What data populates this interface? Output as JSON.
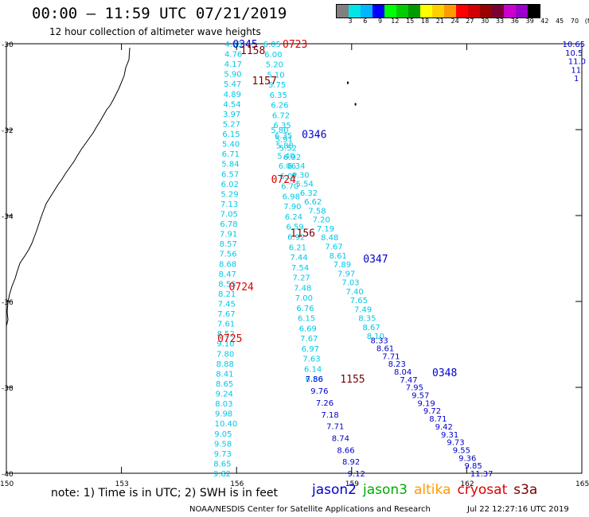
{
  "header": {
    "title": "00:00 – 11:59 UTC 07/21/2019",
    "subtitle": "12 hour collection of altimeter wave heights"
  },
  "colorbar": {
    "colors": [
      "#808080",
      "#00e5e5",
      "#00b4ff",
      "#0000ff",
      "#00ff00",
      "#00cc00",
      "#009900",
      "#ffff00",
      "#ffd000",
      "#ff9900",
      "#ff0000",
      "#d10000",
      "#990000",
      "#7a0033",
      "#cc00cc",
      "#9900cc",
      "#000000"
    ],
    "labels": [
      "3",
      "6",
      "9",
      "12",
      "15",
      "18",
      "21",
      "24",
      "27",
      "30",
      "33",
      "36",
      "39",
      "42",
      "45",
      "70",
      "(ft)"
    ]
  },
  "map": {
    "lat_range": [
      -40,
      -30
    ],
    "lon_range": [
      150,
      165
    ],
    "lat_ticks": [
      "-30",
      "-32",
      "-34",
      "-36",
      "-38",
      "-40"
    ],
    "lon_ticks": [
      "150",
      "153",
      "156",
      "159",
      "162",
      "165"
    ],
    "colors": {
      "cyan": "#00c8e8",
      "blue": "#0000cc",
      "red": "#dd0000",
      "maroon": "#7a0000"
    },
    "tracks": [
      {
        "color": "cyan",
        "lon_start": 155.9,
        "lat_start": -30.0,
        "lon_end": 155.6,
        "lat_end": -40.0,
        "values": [
          "4.83",
          "4.76",
          "4.17",
          "5.90",
          "5.47",
          "4.89",
          "4.54",
          "3.97",
          "5.27",
          "6.15",
          "5.40",
          "6.71",
          "5.84",
          "6.57",
          "6.02",
          "5.29",
          "7.13",
          "7.05",
          "6.78",
          "7.91",
          "8.57",
          "7.56",
          "8.68",
          "8.47",
          "8.55",
          "8.21",
          "7.45",
          "7.67",
          "7.61",
          "8.52",
          "9.10",
          "7.80",
          "8.88",
          "8.41",
          "8.65",
          "9.24",
          "8.03",
          "9.98",
          "10.40",
          "9.05",
          "9.58",
          "9.73",
          "8.65",
          "9.82"
        ]
      },
      {
        "color": "cyan",
        "lon_start": 156.9,
        "lat_start": -30.0,
        "lon_end": 158.0,
        "lat_end": -37.8,
        "values": [
          "6.05",
          "6.00",
          "5.20",
          "5.10",
          "5.75",
          "6.35",
          "6.26",
          "6.72",
          "6.35",
          "6.35",
          "5.88",
          "5.40",
          "6.06",
          "6.07",
          "6.70",
          "6.98",
          "7.90",
          "6.24",
          "6.59",
          "6.92",
          "6.21",
          "7.44",
          "7.54",
          "7.27",
          "7.48",
          "7.00",
          "6.76",
          "6.15",
          "6.69",
          "7.67",
          "6.97",
          "7.63",
          "6.14",
          "6.50"
        ]
      },
      {
        "color": "cyan",
        "lon_start": 157.1,
        "lat_start": -32.0,
        "lon_end": 159.6,
        "lat_end": -36.8,
        "values": [
          "5.80",
          "5.91",
          "5.52",
          "6.92",
          "6.34",
          "6.30",
          "5.54",
          "6.32",
          "6.62",
          "7.58",
          "7.20",
          "7.19",
          "8.48",
          "7.67",
          "8.61",
          "7.89",
          "7.97",
          "7.03",
          "7.40",
          "7.65",
          "7.49",
          "8.35",
          "8.67",
          "8.10"
        ]
      },
      {
        "color": "blue",
        "lon_start": 158.0,
        "lat_start": -37.8,
        "lon_end": 159.1,
        "lat_end": -40.0,
        "values": [
          "7.86",
          "9.76",
          "7.26",
          "7.18",
          "7.71",
          "8.74",
          "8.66",
          "8.92",
          "9.12"
        ]
      },
      {
        "color": "blue",
        "lon_start": 159.7,
        "lat_start": -36.9,
        "lon_end": 162.3,
        "lat_end": -40.0,
        "values": [
          "8.33",
          "8.61",
          "7.71",
          "8.23",
          "8.04",
          "7.47",
          "7.95",
          "9.57",
          "9.19",
          "9.72",
          "8.71",
          "9.42",
          "9.31",
          "9.73",
          "9.55",
          "9.36",
          "9.85",
          "11.37"
        ]
      },
      {
        "color": "blue",
        "lon_start": 164.7,
        "lat_start": -30.0,
        "lon_end": 165.0,
        "lat_end": -30.8,
        "values": [
          "10.65",
          "10.5",
          "11.0",
          "11",
          "1"
        ]
      }
    ],
    "time_labels": [
      {
        "text": "0345",
        "color": "blue",
        "lon": 155.9,
        "lat": -30.0
      },
      {
        "text": "0723",
        "color": "red",
        "lon": 157.2,
        "lat": -30.0
      },
      {
        "text": "1158",
        "color": "maroon",
        "lon": 156.1,
        "lat": -30.15
      },
      {
        "text": "1157",
        "color": "maroon",
        "lon": 156.4,
        "lat": -30.85
      },
      {
        "text": "0346",
        "color": "blue",
        "lon": 157.7,
        "lat": -32.1
      },
      {
        "text": "0724",
        "color": "red",
        "lon": 156.9,
        "lat": -33.15
      },
      {
        "text": "1156",
        "color": "maroon",
        "lon": 157.4,
        "lat": -34.4
      },
      {
        "text": "0347",
        "color": "blue",
        "lon": 159.3,
        "lat": -35.0
      },
      {
        "text": "0724",
        "color": "red",
        "lon": 155.8,
        "lat": -35.65
      },
      {
        "text": "0725",
        "color": "red",
        "lon": 155.5,
        "lat": -36.85
      },
      {
        "text": "0348",
        "color": "blue",
        "lon": 161.1,
        "lat": -37.65
      },
      {
        "text": "1155",
        "color": "maroon",
        "lon": 158.7,
        "lat": -37.8
      }
    ]
  },
  "footer": {
    "note": "note: 1) Time is in UTC; 2) SWH is in feet",
    "satellites": [
      {
        "name": "jason2",
        "color": "#0000cc"
      },
      {
        "name": "jason3",
        "color": "#00aa00"
      },
      {
        "name": "altika",
        "color": "#ff9900"
      },
      {
        "name": "cryosat",
        "color": "#dd0000"
      },
      {
        "name": "s3a",
        "color": "#7a0000"
      }
    ],
    "credit": "NOAA/NESDIS Center for Satellite Applications and Research",
    "timestamp": "Jul 22 12:27:16 UTC 2019"
  }
}
